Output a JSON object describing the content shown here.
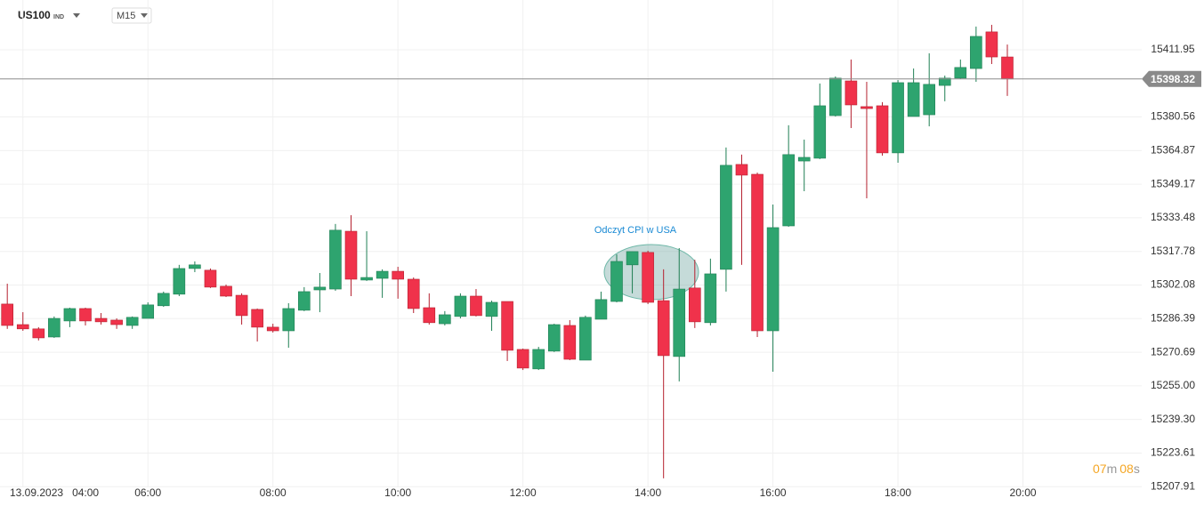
{
  "chart_data": {
    "type": "candlestick",
    "symbol": "US100",
    "symbol_class": "IND",
    "timeframe": "M15",
    "date_label": "13.09.2023",
    "annotation": "Odczyt CPI w USA",
    "countdown": {
      "minutes": "07",
      "minutes_unit": "m",
      "seconds": "08",
      "seconds_unit": "s"
    },
    "up_color": "#2ea46f",
    "down_color": "#f0324b",
    "price_line": 15398.32,
    "grid": true,
    "x": [
      "03:45",
      "04:00",
      "04:15",
      "04:30",
      "04:45",
      "05:00",
      "05:15",
      "05:30",
      "05:45",
      "06:00",
      "06:15",
      "06:30",
      "06:45",
      "07:00",
      "07:15",
      "07:30",
      "07:45",
      "08:00",
      "08:15",
      "08:30",
      "08:45",
      "09:00",
      "09:15",
      "09:30",
      "09:45",
      "10:00",
      "10:15",
      "10:30",
      "10:45",
      "11:00",
      "11:15",
      "11:30",
      "11:45",
      "12:00",
      "12:15",
      "12:30",
      "12:45",
      "13:00",
      "13:15",
      "13:30",
      "13:45",
      "14:00",
      "14:15",
      "14:30",
      "14:45",
      "15:00",
      "15:15",
      "15:30",
      "15:45",
      "16:00",
      "16:15",
      "16:30",
      "16:45",
      "17:00",
      "17:15",
      "17:30",
      "17:45",
      "18:00",
      "18:15",
      "18:30",
      "18:45",
      "19:00",
      "19:15",
      "19:30",
      "19:45"
    ],
    "open": [
      15293.2,
      15283.6,
      15281.6,
      15277.8,
      15285.3,
      15291.1,
      15286.5,
      15285.7,
      15283.2,
      15286.5,
      15292.4,
      15297.8,
      15309.8,
      15309.0,
      15301.5,
      15297.3,
      15290.7,
      15282.4,
      15280.7,
      15290.3,
      15299.8,
      15300.2,
      15327.2,
      15304.4,
      15305.2,
      15308.5,
      15304.8,
      15291.5,
      15284.0,
      15287.4,
      15296.9,
      15287.4,
      15294.4,
      15272.0,
      15262.9,
      15271.2,
      15283.2,
      15267.0,
      15286.1,
      15294.4,
      15311.5,
      15317.3,
      15294.8,
      15268.7,
      15300.7,
      15284.5,
      15309.4,
      15358.4,
      15353.8,
      15280.7,
      15329.7,
      15360.0,
      15361.3,
      15381.2,
      15397.4,
      15385.4,
      15385.8,
      15363.8,
      15380.8,
      15381.6,
      15395.3,
      15398.7,
      15403.2,
      15420.3,
      15408.6
    ],
    "high": [
      15302.7,
      15289.4,
      15282.4,
      15287.4,
      15291.5,
      15291.5,
      15289.0,
      15286.5,
      15287.4,
      15294.0,
      15299.0,
      15311.5,
      15313.1,
      15309.8,
      15302.3,
      15298.2,
      15291.1,
      15284.0,
      15293.6,
      15301.1,
      15307.7,
      15330.6,
      15334.7,
      15327.2,
      15309.4,
      15310.6,
      15305.6,
      15298.2,
      15289.9,
      15298.2,
      15300.2,
      15294.8,
      15294.4,
      15272.4,
      15273.2,
      15284.0,
      15285.7,
      15287.8,
      15299.0,
      15316.4,
      15317.7,
      15318.1,
      15309.4,
      15319.3,
      15313.9,
      15314.4,
      15366.3,
      15363.0,
      15354.6,
      15339.7,
      15376.7,
      15370.0,
      15396.2,
      15399.5,
      15407.4,
      15397.0,
      15387.5,
      15397.8,
      15403.2,
      15410.3,
      15399.9,
      15407.4,
      15422.8,
      15423.6,
      15414.4
    ],
    "low": [
      15281.6,
      15280.7,
      15276.2,
      15277.4,
      15282.4,
      15283.2,
      15283.6,
      15281.6,
      15281.6,
      15286.5,
      15291.9,
      15296.9,
      15308.1,
      15300.7,
      15296.5,
      15283.6,
      15275.7,
      15279.9,
      15272.8,
      15289.9,
      15289.4,
      15299.4,
      15296.9,
      15304.0,
      15296.1,
      15295.7,
      15289.0,
      15283.6,
      15283.2,
      15286.5,
      15287.4,
      15280.7,
      15266.6,
      15262.4,
      15262.4,
      15270.8,
      15267.0,
      15267.0,
      15286.1,
      15294.0,
      15298.2,
      15293.2,
      15211.8,
      15257.1,
      15282.0,
      15283.2,
      15299.0,
      15311.5,
      15277.8,
      15261.6,
      15329.3,
      15345.9,
      15360.9,
      15380.8,
      15375.4,
      15342.6,
      15362.5,
      15359.2,
      15380.8,
      15376.2,
      15387.9,
      15398.3,
      15397.0,
      15405.3,
      15390.4
    ],
    "close": [
      15283.2,
      15281.6,
      15277.4,
      15286.5,
      15291.1,
      15285.3,
      15284.9,
      15283.6,
      15287.0,
      15292.8,
      15298.2,
      15309.8,
      15311.5,
      15301.1,
      15296.9,
      15287.8,
      15282.4,
      15280.7,
      15291.1,
      15299.0,
      15301.1,
      15327.7,
      15304.8,
      15305.6,
      15308.5,
      15304.8,
      15291.1,
      15284.5,
      15288.2,
      15296.9,
      15287.8,
      15294.0,
      15271.6,
      15263.3,
      15272.0,
      15283.6,
      15267.4,
      15287.0,
      15295.3,
      15313.1,
      15317.7,
      15294.0,
      15269.1,
      15300.2,
      15284.9,
      15307.3,
      15358.0,
      15353.4,
      15280.7,
      15328.9,
      15363.0,
      15361.7,
      15385.8,
      15398.7,
      15386.2,
      15384.5,
      15363.8,
      15396.6,
      15396.6,
      15395.8,
      15398.7,
      15403.7,
      15418.2,
      15408.6,
      15398.32
    ],
    "xlim": [
      "03:38",
      "21:54"
    ],
    "xticks": [
      "04:00",
      "06:00",
      "08:00",
      "10:00",
      "12:00",
      "14:00",
      "16:00",
      "18:00",
      "20:00"
    ],
    "ylim": [
      15207.6,
      15435.2
    ],
    "yticks": [
      15411.95,
      15380.56,
      15364.87,
      15349.17,
      15333.48,
      15317.78,
      15302.08,
      15286.39,
      15270.69,
      {
        "value": 15255,
        "label": "15255.00"
      },
      {
        "value": 15239.3,
        "label": "15239.30"
      },
      15223.61,
      15207.91
    ]
  }
}
